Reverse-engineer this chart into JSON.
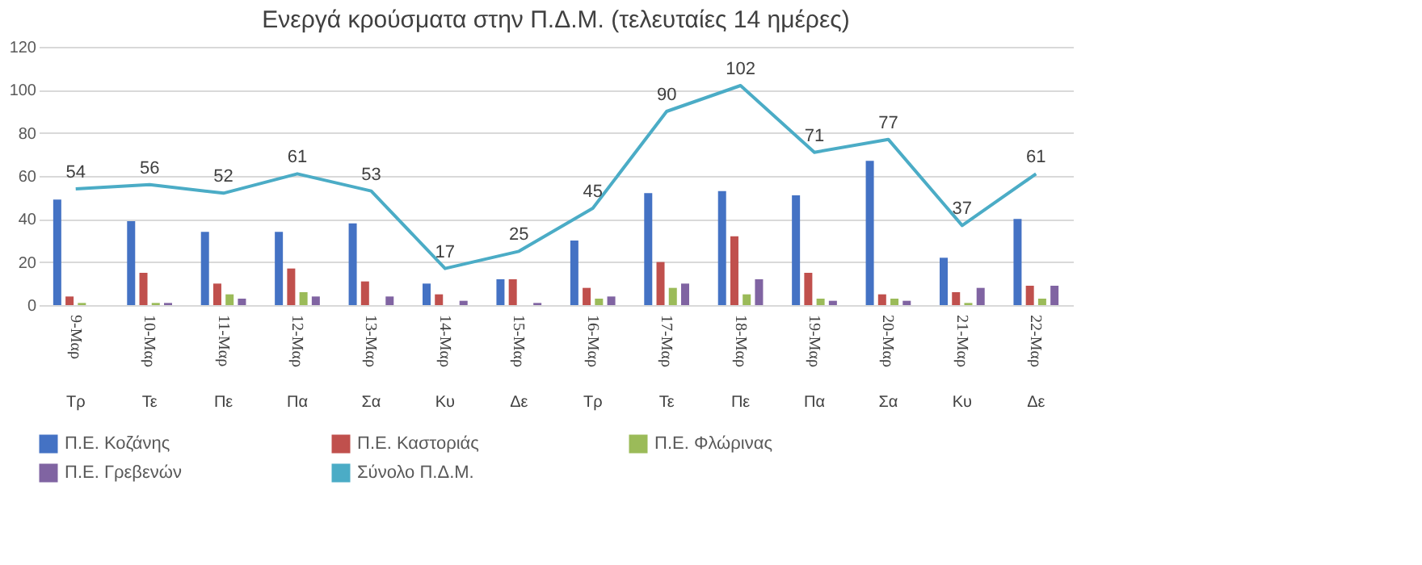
{
  "chart_data": {
    "type": "bar",
    "title": "Ενεργά κρούσματα στην Π.Δ.Μ. (τελευταίες 14 ημέρες)",
    "categories": [
      "9-Μαρ\nΤρ",
      "10-Μαρ\nΤε",
      "11-Μαρ\nΠε",
      "12-Μαρ\nΠα",
      "13-Μαρ\nΣα",
      "14-Μαρ\nΚυ",
      "15-Μαρ\nΔε",
      "16-Μαρ\nΤρ",
      "17-Μαρ\nΤε",
      "18-Μαρ\nΠε",
      "19-Μαρ\nΠα",
      "20-Μαρ\nΣα",
      "21-Μαρ\nΚυ",
      "22-Μαρ\nΔε"
    ],
    "series": [
      {
        "name": "Π.Ε. Κοζάνης",
        "color": "#4472c4",
        "values": [
          49,
          39,
          34,
          34,
          38,
          10,
          12,
          30,
          52,
          53,
          51,
          67,
          22,
          40
        ]
      },
      {
        "name": "Π.Ε. Καστοριάς",
        "color": "#c0504d",
        "values": [
          4,
          15,
          10,
          17,
          11,
          5,
          12,
          8,
          20,
          32,
          15,
          5,
          6,
          9
        ]
      },
      {
        "name": "Π.Ε. Φλώρινας",
        "color": "#9bbb59",
        "values": [
          1,
          1,
          5,
          6,
          0,
          0,
          0,
          3,
          8,
          5,
          3,
          3,
          1,
          3
        ]
      },
      {
        "name": "Π.Ε. Γρεβενών",
        "color": "#8064a2",
        "values": [
          0,
          1,
          3,
          4,
          4,
          2,
          1,
          4,
          10,
          12,
          2,
          2,
          8,
          9
        ]
      },
      {
        "name": "Σύνολο Π.Δ.Μ.",
        "color": "#4bacc6",
        "type": "line",
        "values": [
          54,
          56,
          52,
          61,
          53,
          17,
          25,
          45,
          90,
          102,
          71,
          77,
          37,
          61
        ],
        "value_labels": [
          "54",
          "56",
          "52",
          "61",
          "53",
          "17",
          "25",
          "45",
          "90",
          "102",
          "71",
          "77",
          "37",
          "61"
        ]
      }
    ],
    "ylim": [
      0,
      120
    ],
    "yticks": [
      0,
      20,
      40,
      60,
      80,
      100,
      120
    ],
    "grid": "y",
    "legend": "bottom",
    "marker": "none",
    "line_style": "solid"
  }
}
